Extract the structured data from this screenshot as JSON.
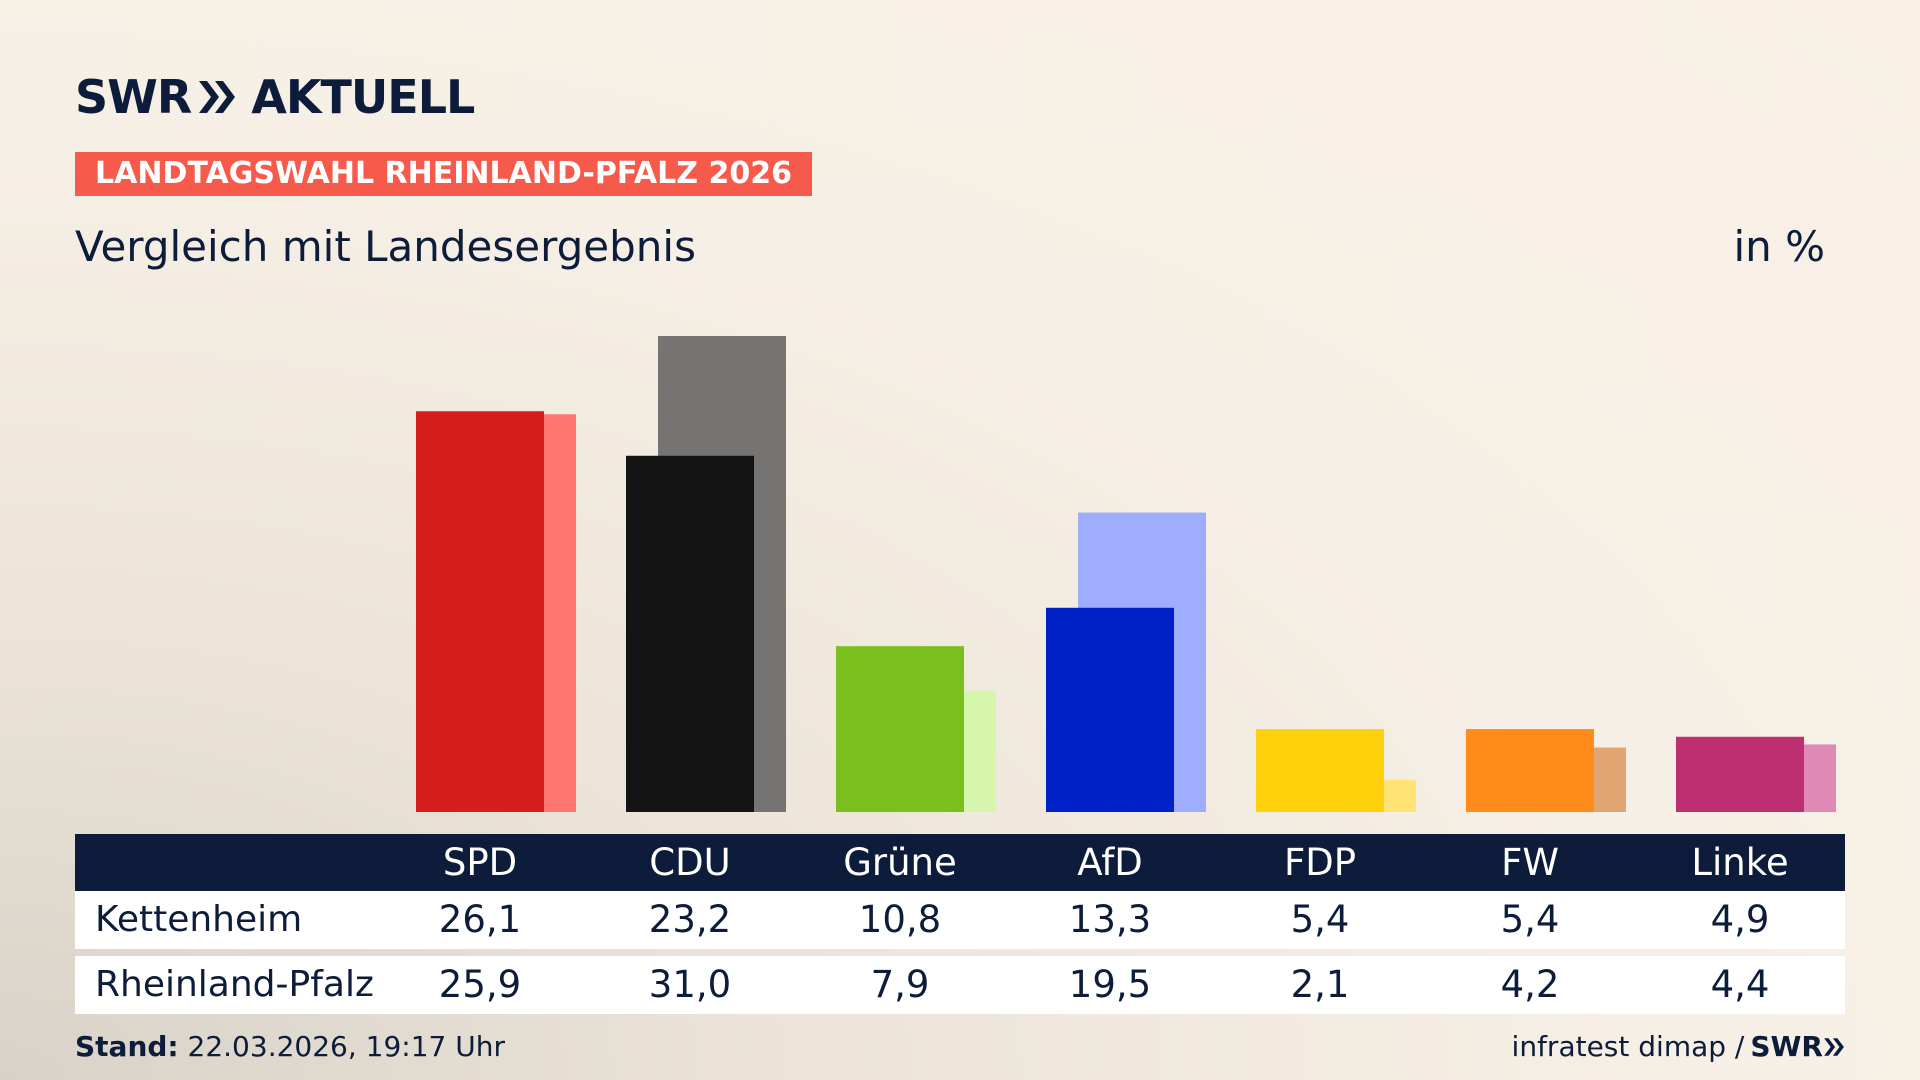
{
  "brand": {
    "name": "SWR",
    "product": "AKTUELL",
    "footer_brand": "SWR"
  },
  "badge": "LANDTAGSWAHL RHEINLAND-PFALZ 2026",
  "subtitle": "Vergleich mit Landesergebnis",
  "unit": "in %",
  "footer": {
    "stand_label": "Stand:",
    "stand_value": "22.03.2026, 19:17 Uhr",
    "source": "infratest dimap /"
  },
  "colors": {
    "navy": "#0c1c3a",
    "badge": "#f55a4b",
    "SPD": [
      "#d51f1f",
      "#ff7570"
    ],
    "CDU": [
      "#141414",
      "#757472"
    ],
    "Grüne": [
      "#7abf1e",
      "#d7f6ad"
    ],
    "AfD": [
      "#0020c8",
      "#9fadff"
    ],
    "FDP": [
      "#ffd00c",
      "#ffe475"
    ],
    "FW": [
      "#ff8b1a",
      "#dfa673"
    ],
    "Linke": [
      "#bd2f72",
      "#df89b5"
    ]
  },
  "chart_data": {
    "type": "bar",
    "categories": [
      "SPD",
      "CDU",
      "Grüne",
      "AfD",
      "FDP",
      "FW",
      "Linke"
    ],
    "series": [
      {
        "name": "Kettenheim",
        "values": [
          26.1,
          23.2,
          10.8,
          13.3,
          5.4,
          5.4,
          4.9
        ]
      },
      {
        "name": "Rheinland-Pfalz",
        "values": [
          25.9,
          31.0,
          7.9,
          19.5,
          2.1,
          4.2,
          4.4
        ]
      }
    ],
    "ylim": [
      0,
      31.0
    ]
  }
}
